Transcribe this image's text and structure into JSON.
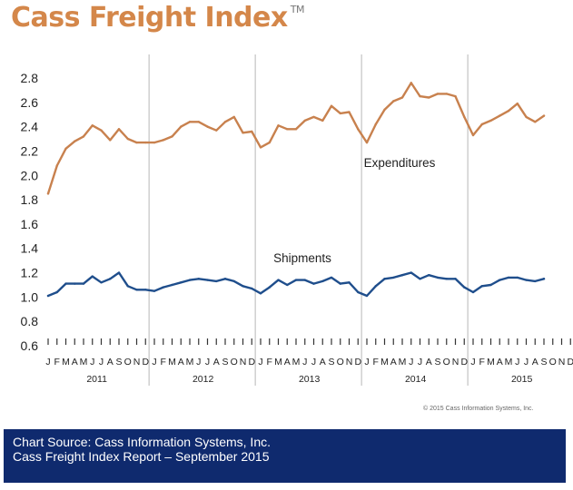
{
  "header": {
    "title": "Cass Freight Index",
    "trademark": "TM"
  },
  "copyright": "© 2015 Cass Information Systems, Inc.",
  "source": {
    "line1": "Chart Source: Cass Information Systems, Inc.",
    "line2": "Cass Freight Index Report – September 2015"
  },
  "chart_data": {
    "type": "line",
    "title": "Cass Freight Index",
    "xlabel": "",
    "ylabel": "",
    "ylim": [
      0.6,
      2.8
    ],
    "yticks": [
      "0.6",
      "0.8",
      "1.0",
      "1.2",
      "1.4",
      "1.6",
      "1.8",
      "2.0",
      "2.2",
      "2.4",
      "2.6",
      "2.8"
    ],
    "grid": "vertical year separators",
    "month_labels": [
      "J",
      "F",
      "M",
      "A",
      "M",
      "J",
      "J",
      "A",
      "S",
      "O",
      "N",
      "D"
    ],
    "years": [
      "2011",
      "2012",
      "2013",
      "2014",
      "2015"
    ],
    "series": [
      {
        "name": "Expenditures",
        "color": "#c8814e",
        "values": [
          1.85,
          2.08,
          2.22,
          2.28,
          2.32,
          2.41,
          2.37,
          2.29,
          2.38,
          2.3,
          2.27,
          2.27,
          2.27,
          2.29,
          2.32,
          2.4,
          2.44,
          2.44,
          2.4,
          2.37,
          2.44,
          2.48,
          2.35,
          2.36,
          2.23,
          2.27,
          2.41,
          2.38,
          2.38,
          2.45,
          2.48,
          2.45,
          2.57,
          2.51,
          2.52,
          2.38,
          2.27,
          2.42,
          2.54,
          2.61,
          2.64,
          2.76,
          2.65,
          2.64,
          2.67,
          2.67,
          2.65,
          2.48,
          2.33,
          2.42,
          2.45,
          2.49,
          2.53,
          2.59,
          2.48,
          2.44,
          2.49
        ]
      },
      {
        "name": "Shipments",
        "color": "#1f4e8c",
        "values": [
          1.01,
          1.04,
          1.11,
          1.11,
          1.11,
          1.17,
          1.12,
          1.15,
          1.2,
          1.09,
          1.06,
          1.06,
          1.05,
          1.08,
          1.1,
          1.12,
          1.14,
          1.15,
          1.14,
          1.13,
          1.15,
          1.13,
          1.09,
          1.07,
          1.03,
          1.08,
          1.14,
          1.1,
          1.14,
          1.14,
          1.11,
          1.13,
          1.16,
          1.11,
          1.12,
          1.04,
          1.01,
          1.09,
          1.15,
          1.16,
          1.18,
          1.2,
          1.15,
          1.18,
          1.16,
          1.15,
          1.15,
          1.08,
          1.04,
          1.09,
          1.1,
          1.14,
          1.16,
          1.16,
          1.14,
          1.13,
          1.15
        ]
      }
    ],
    "annotations": [
      {
        "text": "Expenditures",
        "near_series": "Expenditures"
      },
      {
        "text": "Shipments",
        "near_series": "Shipments"
      }
    ]
  }
}
